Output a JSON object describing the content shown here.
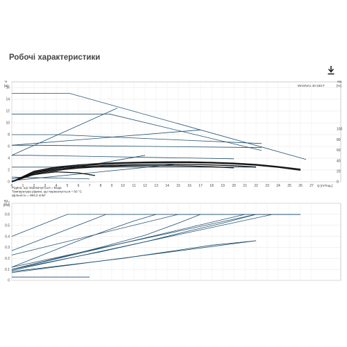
{
  "page": {
    "title": "Робочі характеристики",
    "download_icon": "download-icon"
  },
  "chart_data": [
    {
      "type": "line",
      "panel": "head",
      "title": "",
      "xlabel": "Q",
      "xunit": "[m³/год.]",
      "ylabel": "H",
      "yunit": "[м]",
      "y2label": "eta",
      "y2unit": "[%]",
      "legend": "MAGNA1 40-150 F",
      "xlim": [
        0,
        27
      ],
      "ylim": [
        0,
        16
      ],
      "y2lim": [
        0,
        100
      ],
      "x_ticks": [
        "0",
        "1",
        "2",
        "3",
        "4",
        "5",
        "6",
        "7",
        "8",
        "9",
        "10",
        "11",
        "12",
        "13",
        "14",
        "15",
        "16",
        "17",
        "18",
        "19",
        "20",
        "21",
        "22",
        "23",
        "24",
        "25",
        "26",
        "27"
      ],
      "y_ticks": [
        "0",
        "2",
        "4",
        "6",
        "8",
        "10",
        "12",
        "14",
        "16"
      ],
      "y2_ticks": [
        "0",
        "20",
        "40",
        "60",
        "80",
        "100"
      ],
      "series": [
        {
          "kind": "hq",
          "x": [
            0,
            5.2,
            26.5
          ],
          "y": [
            15.0,
            15.0,
            3.8
          ]
        },
        {
          "kind": "hq",
          "x": [
            0,
            8.8,
            22.5
          ],
          "y": [
            11.5,
            11.5,
            5.3
          ]
        },
        {
          "kind": "hq",
          "x": [
            0,
            4.0,
            22.5
          ],
          "y": [
            8.0,
            8.0,
            6.5
          ]
        },
        {
          "kind": "hq",
          "x": [
            0,
            2.5,
            22.5
          ],
          "y": [
            6.2,
            6.2,
            5.8
          ]
        },
        {
          "kind": "hq",
          "x": [
            0,
            1.5,
            20.0
          ],
          "y": [
            4.5,
            4.5,
            3.9
          ]
        },
        {
          "kind": "hq",
          "x": [
            0,
            3.0,
            22.0
          ],
          "y": [
            2.5,
            2.5,
            2.5
          ]
        },
        {
          "kind": "hq",
          "x": [
            0,
            7.0
          ],
          "y": [
            0.8,
            0.5
          ]
        },
        {
          "kind": "control",
          "x": [
            0,
            9.5
          ],
          "y": [
            4.5,
            12.5
          ]
        },
        {
          "kind": "control",
          "x": [
            0,
            17.0
          ],
          "y": [
            6.2,
            8.8
          ]
        },
        {
          "kind": "control",
          "x": [
            0,
            12.0
          ],
          "y": [
            0.5,
            4.5
          ]
        },
        {
          "kind": "control",
          "x": [
            0,
            15.0
          ],
          "y": [
            0.2,
            3.0
          ]
        },
        {
          "kind": "eta",
          "x": [
            0,
            2,
            4,
            6,
            8,
            10,
            12,
            14,
            16,
            18,
            20,
            22,
            24,
            26
          ],
          "y": [
            0,
            20,
            28,
            32,
            35,
            36.5,
            37.5,
            38,
            38,
            37,
            35.5,
            33,
            29,
            24
          ]
        },
        {
          "kind": "eta",
          "x": [
            0,
            2,
            4,
            6,
            8,
            10,
            12,
            14,
            16,
            18,
            20,
            22,
            24,
            26
          ],
          "y": [
            0,
            18,
            26,
            30,
            33,
            35,
            36,
            36.5,
            36.5,
            35.5,
            34,
            31.5,
            27.5,
            22
          ]
        },
        {
          "kind": "eta",
          "x": [
            0,
            2,
            4,
            6,
            8,
            10,
            12,
            14,
            16,
            18,
            20,
            22
          ],
          "y": [
            0,
            17,
            24,
            28,
            30.5,
            32,
            33,
            33.5,
            33,
            32,
            30.5,
            28
          ]
        },
        {
          "kind": "eta",
          "x": [
            0,
            2,
            4,
            6,
            8,
            10,
            12,
            14,
            16,
            18,
            20
          ],
          "y": [
            0,
            15,
            22,
            26,
            28.5,
            30,
            30.5,
            30.5,
            30,
            28.5,
            26.5
          ]
        },
        {
          "kind": "eta",
          "x": [
            0,
            2,
            4,
            6,
            7.5
          ],
          "y": [
            0,
            14,
            19,
            17,
            12
          ]
        }
      ],
      "annotations": [
        "Рідина, що перекачується = Вода",
        "Температура рідини, що перекачується = 60 °C",
        "Щільність = 983.2 кг/м³"
      ]
    },
    {
      "type": "line",
      "panel": "power",
      "title": "",
      "xlabel": "",
      "ylabel": "P1",
      "yunit": "[kW]",
      "xlim": [
        0,
        27
      ],
      "ylim": [
        0,
        0.7
      ],
      "y_ticks": [
        "0",
        "0.1",
        "0.2",
        "0.3",
        "0.4",
        "0.5",
        "0.6",
        "0.7"
      ],
      "series": [
        {
          "kind": "p1",
          "x": [
            0,
            5.0,
            26.0
          ],
          "y": [
            0.4,
            0.6,
            0.6
          ]
        },
        {
          "kind": "p1",
          "x": [
            0,
            8.5,
            26.0
          ],
          "y": [
            0.27,
            0.6,
            0.6
          ]
        },
        {
          "kind": "p1",
          "x": [
            0,
            15.0,
            26.0
          ],
          "y": [
            0.23,
            0.6,
            0.6
          ]
        },
        {
          "kind": "p1",
          "x": [
            0,
            21.0,
            26.0
          ],
          "y": [
            0.1,
            0.6,
            0.6
          ]
        },
        {
          "kind": "p1",
          "x": [
            0,
            22.0,
            26.0
          ],
          "y": [
            0.12,
            0.6,
            0.6
          ]
        },
        {
          "kind": "p1",
          "x": [
            0,
            23.5,
            26.0
          ],
          "y": [
            0.09,
            0.6,
            0.6
          ]
        },
        {
          "kind": "p1",
          "x": [
            0,
            22.0
          ],
          "y": [
            0.07,
            0.36
          ]
        },
        {
          "kind": "p1",
          "x": [
            0,
            7.0
          ],
          "y": [
            0.03,
            0.03
          ]
        },
        {
          "kind": "p1curve",
          "x": [
            0,
            4,
            8,
            12,
            16,
            19,
            22
          ],
          "y": [
            0.1,
            0.18,
            0.26,
            0.35,
            0.45,
            0.52,
            0.6
          ]
        },
        {
          "kind": "p1curve",
          "x": [
            0,
            3,
            6,
            9,
            11,
            13
          ],
          "y": [
            0.12,
            0.24,
            0.36,
            0.47,
            0.54,
            0.6
          ]
        },
        {
          "kind": "p1curve",
          "x": [
            0,
            4,
            8,
            12,
            15,
            17
          ],
          "y": [
            0.1,
            0.2,
            0.3,
            0.41,
            0.52,
            0.6
          ]
        },
        {
          "kind": "p1curve",
          "x": [
            0,
            5,
            10,
            14,
            18,
            22
          ],
          "y": [
            0.08,
            0.14,
            0.2,
            0.26,
            0.32,
            0.36
          ]
        }
      ]
    }
  ]
}
